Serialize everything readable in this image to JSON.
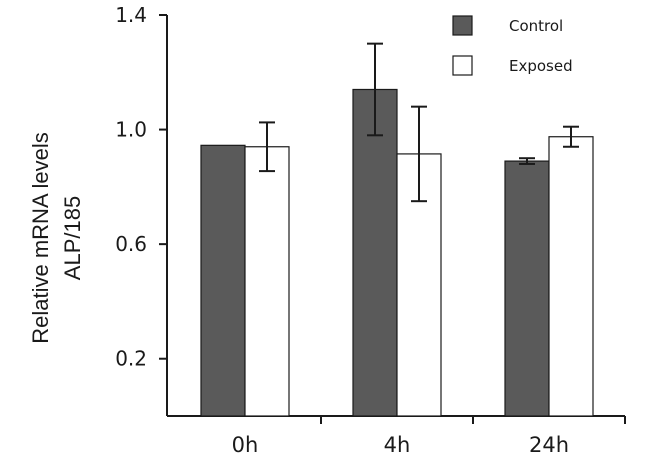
{
  "chart_data": {
    "type": "bar",
    "title": "",
    "categories": [
      "0h",
      "4h",
      "24h"
    ],
    "series": [
      {
        "name": "Control",
        "values": [
          0.945,
          1.14,
          0.89
        ],
        "errors": [
          0.0,
          0.16,
          0.01
        ],
        "color": "#5a5a5a"
      },
      {
        "name": "Exposed",
        "values": [
          0.94,
          0.915,
          0.975
        ],
        "errors": [
          0.085,
          0.165,
          0.035
        ],
        "color": "#ffffff"
      }
    ],
    "ylabel_line1": "Relative mRNA  levels",
    "ylabel_line2": "ALP/185",
    "xlabel": "",
    "ylim": [
      0,
      1.4
    ],
    "yticks": [
      0.2,
      0.6,
      1.0,
      1.4
    ],
    "ytick_labels": [
      "0.2",
      "0.6",
      "1.0",
      "1.4"
    ],
    "grid": false,
    "legend_position": "top-right"
  }
}
